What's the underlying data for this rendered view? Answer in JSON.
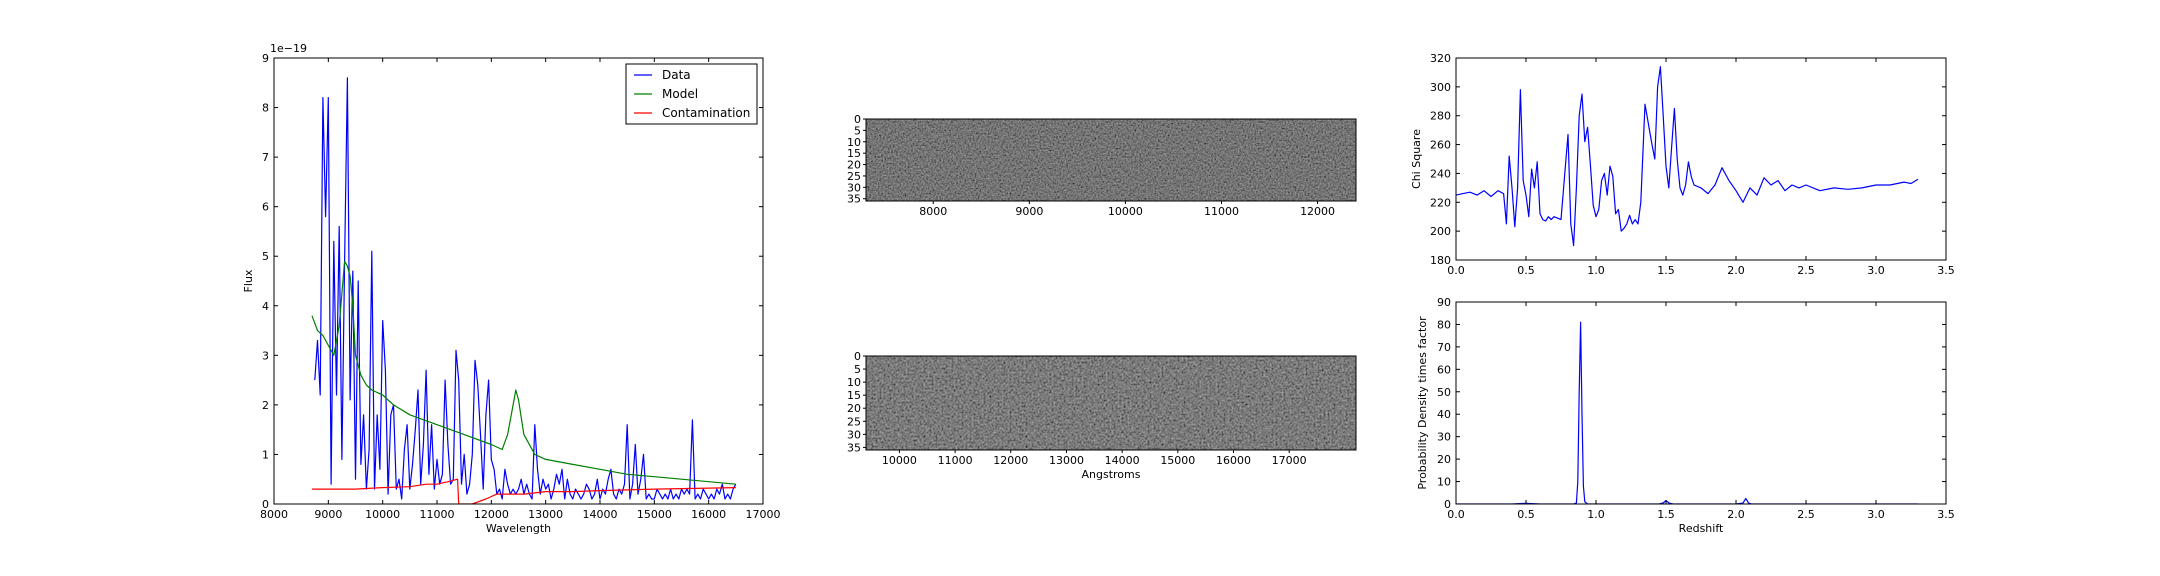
{
  "colors": {
    "data": "#0000ff",
    "model": "#008000",
    "contamination": "#ff0000",
    "axes": "#000000"
  },
  "chart_data": [
    {
      "id": "spectrum",
      "type": "line",
      "xlabel": "Wavelength",
      "ylabel": "Flux",
      "offset_text": "1e−19",
      "xlim": [
        8000,
        17000
      ],
      "ylim": [
        0,
        9
      ],
      "xticks": [
        8000,
        9000,
        10000,
        11000,
        12000,
        13000,
        14000,
        15000,
        16000,
        17000
      ],
      "yticks": [
        0,
        1,
        2,
        3,
        4,
        5,
        6,
        7,
        8,
        9
      ],
      "legend_position": "top-right",
      "series": [
        {
          "name": "Data",
          "color": "#0000ff",
          "x": [
            8750,
            8800,
            8850,
            8900,
            8950,
            9000,
            9050,
            9100,
            9150,
            9200,
            9250,
            9300,
            9350,
            9400,
            9450,
            9500,
            9550,
            9600,
            9650,
            9700,
            9750,
            9800,
            9850,
            9900,
            9950,
            10000,
            10050,
            10100,
            10150,
            10200,
            10250,
            10300,
            10350,
            10400,
            10450,
            10500,
            10550,
            10600,
            10650,
            10700,
            10750,
            10800,
            10850,
            10900,
            10950,
            11000,
            11050,
            11100,
            11150,
            11200,
            11250,
            11300,
            11350,
            11400,
            11450,
            11500,
            11550,
            11600,
            11650,
            11700,
            11750,
            11800,
            11850,
            11900,
            11950,
            12000,
            12050,
            12100,
            12150,
            12200,
            12250,
            12300,
            12350,
            12400,
            12450,
            12500,
            12550,
            12600,
            12650,
            12700,
            12750,
            12800,
            12850,
            12900,
            12950,
            13000,
            13050,
            13100,
            13150,
            13200,
            13250,
            13300,
            13350,
            13400,
            13450,
            13500,
            13550,
            13600,
            13650,
            13700,
            13750,
            13800,
            13850,
            13900,
            13950,
            14000,
            14050,
            14100,
            14150,
            14200,
            14250,
            14300,
            14350,
            14400,
            14450,
            14500,
            14550,
            14600,
            14650,
            14700,
            14750,
            14800,
            14850,
            14900,
            14950,
            15000,
            15050,
            15100,
            15150,
            15200,
            15250,
            15300,
            15350,
            15400,
            15450,
            15500,
            15550,
            15600,
            15650,
            15700,
            15750,
            15800,
            15850,
            15900,
            15950,
            16000,
            16050,
            16100,
            16150,
            16200,
            16250,
            16300,
            16350,
            16400,
            16450,
            16500
          ],
          "y": [
            2.5,
            3.3,
            2.2,
            8.2,
            5.8,
            8.2,
            0.4,
            5.3,
            2.2,
            5.6,
            0.9,
            4.9,
            8.6,
            2.1,
            4.7,
            0.5,
            4.5,
            0.8,
            1.8,
            0.3,
            1.1,
            5.1,
            0.3,
            1.8,
            0.7,
            3.7,
            2.7,
            0.2,
            1.8,
            2.0,
            0.3,
            0.5,
            0.1,
            1.1,
            1.6,
            0.3,
            0.8,
            1.5,
            2.3,
            0.4,
            1.2,
            2.7,
            0.6,
            1.6,
            0.3,
            0.9,
            0.4,
            0.6,
            2.5,
            1.2,
            0.4,
            0.5,
            3.1,
            2.5,
            0.4,
            1.0,
            0.2,
            0.4,
            1.0,
            2.9,
            2.4,
            1.4,
            0.3,
            1.8,
            2.5,
            0.9,
            0.7,
            0.2,
            0.3,
            0.1,
            0.7,
            0.4,
            0.2,
            0.3,
            0.2,
            0.3,
            0.5,
            0.2,
            0.4,
            0.2,
            0.1,
            1.6,
            0.7,
            0.2,
            0.5,
            0.3,
            0.4,
            0.1,
            0.3,
            0.6,
            0.4,
            0.7,
            0.1,
            0.5,
            0.2,
            0.1,
            0.3,
            0.2,
            0.1,
            0.2,
            0.4,
            0.3,
            0.1,
            0.2,
            0.5,
            0.1,
            0.3,
            0.2,
            0.5,
            0.7,
            0.2,
            0.1,
            0.3,
            0.2,
            0.4,
            1.6,
            0.1,
            0.4,
            1.2,
            0.2,
            0.5,
            1.0,
            0.1,
            0.2,
            0.1,
            0.1,
            0.3,
            0.2,
            0.1,
            0.2,
            0.1,
            0.3,
            0.1,
            0.2,
            0.1,
            0.3,
            0.2,
            0.3,
            0.2,
            1.7,
            0.1,
            0.2,
            0.1,
            0.3,
            0.2,
            0.1,
            0.2,
            0.1,
            0.3,
            0.2,
            0.4,
            0.1,
            0.2,
            0.1,
            0.3,
            0.4
          ]
        },
        {
          "name": "Model",
          "color": "#008000",
          "x": [
            8700,
            8800,
            8900,
            9000,
            9100,
            9200,
            9300,
            9350,
            9400,
            9450,
            9500,
            9600,
            9700,
            9800,
            10000,
            10200,
            10500,
            11000,
            11500,
            12000,
            12200,
            12300,
            12400,
            12450,
            12500,
            12600,
            12800,
            13000,
            13500,
            14000,
            14500,
            15000,
            15500,
            16000,
            16500
          ],
          "y": [
            3.8,
            3.5,
            3.4,
            3.2,
            3.0,
            3.6,
            4.9,
            4.8,
            4.6,
            4.0,
            3.0,
            2.6,
            2.4,
            2.3,
            2.2,
            2.0,
            1.8,
            1.6,
            1.4,
            1.2,
            1.1,
            1.4,
            2.0,
            2.3,
            2.1,
            1.4,
            1.0,
            0.9,
            0.8,
            0.7,
            0.6,
            0.55,
            0.5,
            0.45,
            0.4
          ]
        },
        {
          "name": "Contamination",
          "color": "#ff0000",
          "x": [
            8700,
            9000,
            9500,
            10000,
            10500,
            10800,
            11000,
            11200,
            11380,
            11400,
            11650,
            11900,
            12100,
            12300,
            12600,
            13000,
            13500,
            14000,
            15000,
            16000,
            16500
          ],
          "y": [
            0.3,
            0.3,
            0.3,
            0.33,
            0.35,
            0.4,
            0.4,
            0.45,
            0.5,
            0.0,
            0.0,
            0.1,
            0.2,
            0.2,
            0.2,
            0.25,
            0.25,
            0.27,
            0.3,
            0.32,
            0.33
          ]
        }
      ]
    },
    {
      "id": "image-top",
      "type": "heatmap",
      "colormap": "gray",
      "xlim": [
        7300,
        12400
      ],
      "ylim": [
        36,
        0
      ],
      "xticks": [
        8000,
        9000,
        10000,
        11000,
        12000
      ],
      "yticks": [
        0,
        5,
        10,
        15,
        20,
        25,
        30,
        35
      ]
    },
    {
      "id": "image-bottom",
      "type": "heatmap",
      "colormap": "gray",
      "xlabel": "Angstroms",
      "xlim": [
        9400,
        18200
      ],
      "ylim": [
        36,
        0
      ],
      "xticks": [
        10000,
        11000,
        12000,
        13000,
        14000,
        15000,
        16000,
        17000
      ],
      "yticks": [
        0,
        5,
        10,
        15,
        20,
        25,
        30,
        35
      ]
    },
    {
      "id": "chi-square",
      "type": "line",
      "ylabel": "Chi Square",
      "xlim": [
        0,
        3.5
      ],
      "ylim": [
        180,
        320
      ],
      "xticks": [
        0.0,
        0.5,
        1.0,
        1.5,
        2.0,
        2.5,
        3.0,
        3.5
      ],
      "yticks": [
        180,
        200,
        220,
        240,
        260,
        280,
        300,
        320
      ],
      "series": [
        {
          "color": "#0000ff",
          "x": [
            0.0,
            0.05,
            0.1,
            0.15,
            0.2,
            0.25,
            0.3,
            0.34,
            0.36,
            0.38,
            0.4,
            0.42,
            0.44,
            0.46,
            0.48,
            0.5,
            0.52,
            0.54,
            0.56,
            0.58,
            0.6,
            0.62,
            0.64,
            0.66,
            0.68,
            0.7,
            0.75,
            0.8,
            0.82,
            0.84,
            0.86,
            0.88,
            0.9,
            0.92,
            0.94,
            0.96,
            0.98,
            1.0,
            1.02,
            1.04,
            1.06,
            1.08,
            1.1,
            1.12,
            1.14,
            1.16,
            1.18,
            1.2,
            1.22,
            1.24,
            1.26,
            1.28,
            1.3,
            1.32,
            1.35,
            1.4,
            1.42,
            1.44,
            1.46,
            1.48,
            1.5,
            1.52,
            1.54,
            1.56,
            1.58,
            1.6,
            1.62,
            1.64,
            1.66,
            1.68,
            1.7,
            1.75,
            1.8,
            1.85,
            1.9,
            1.95,
            2.0,
            2.05,
            2.1,
            2.15,
            2.2,
            2.25,
            2.3,
            2.35,
            2.4,
            2.45,
            2.5,
            2.6,
            2.7,
            2.8,
            2.9,
            3.0,
            3.1,
            3.2,
            3.25,
            3.3
          ],
          "y": [
            225,
            226,
            227,
            225,
            228,
            224,
            228,
            226,
            205,
            252,
            230,
            203,
            230,
            298,
            235,
            225,
            210,
            243,
            230,
            248,
            212,
            208,
            207,
            210,
            208,
            210,
            208,
            267,
            205,
            190,
            230,
            280,
            295,
            262,
            272,
            246,
            218,
            210,
            215,
            235,
            240,
            225,
            245,
            238,
            212,
            215,
            200,
            202,
            205,
            211,
            205,
            208,
            205,
            220,
            288,
            260,
            250,
            300,
            314,
            280,
            245,
            230,
            258,
            285,
            250,
            230,
            225,
            232,
            248,
            238,
            232,
            230,
            226,
            232,
            244,
            235,
            228,
            220,
            230,
            225,
            237,
            232,
            235,
            228,
            232,
            230,
            232,
            228,
            230,
            229,
            230,
            232,
            232,
            234,
            233,
            236
          ]
        }
      ]
    },
    {
      "id": "probability",
      "type": "line",
      "xlabel": "Redshift",
      "ylabel": "Probability Density times factor",
      "xlim": [
        0,
        3.5
      ],
      "ylim": [
        0,
        90
      ],
      "xticks": [
        0.0,
        0.5,
        1.0,
        1.5,
        2.0,
        2.5,
        3.0,
        3.5
      ],
      "yticks": [
        0,
        10,
        20,
        30,
        40,
        50,
        60,
        70,
        80,
        90
      ],
      "series": [
        {
          "color": "#0000ff",
          "x": [
            0.0,
            0.4,
            0.5,
            0.6,
            0.84,
            0.86,
            0.87,
            0.88,
            0.89,
            0.9,
            0.91,
            0.92,
            0.94,
            1.2,
            1.45,
            1.48,
            1.5,
            1.52,
            1.55,
            2.0,
            2.05,
            2.07,
            2.09,
            2.11,
            2.15,
            2.5,
            3.0,
            3.3
          ],
          "y": [
            0,
            0,
            0.3,
            0,
            0,
            0.5,
            10,
            50,
            81,
            40,
            8,
            1,
            0,
            0,
            0,
            0.5,
            1.5,
            0.5,
            0,
            0,
            0.4,
            2.5,
            0.4,
            0,
            0,
            0,
            0,
            0
          ]
        }
      ]
    }
  ]
}
